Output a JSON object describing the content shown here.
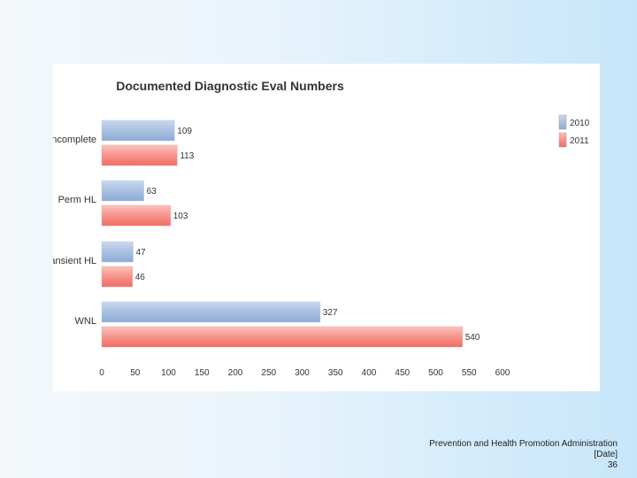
{
  "chart_data": {
    "type": "bar",
    "orientation": "horizontal",
    "title": "Documented Diagnostic Eval Numbers",
    "categories": [
      "Incomplete",
      "Perm HL",
      "Transient HL",
      "WNL"
    ],
    "series": [
      {
        "name": "2010",
        "values": [
          109,
          63,
          47,
          327
        ],
        "color": "#9db7da"
      },
      {
        "name": "2011",
        "values": [
          113,
          103,
          46,
          540
        ],
        "color": "#f47f78"
      }
    ],
    "xlim": [
      0,
      600
    ],
    "xticks": [
      0,
      50,
      100,
      150,
      200,
      250,
      300,
      350,
      400,
      450,
      500,
      550,
      600
    ],
    "legend_position": "top-right",
    "grid": false
  },
  "footer": {
    "organization": "Prevention and Health Promotion Administration",
    "date": "[Date]",
    "page_number": "36"
  }
}
